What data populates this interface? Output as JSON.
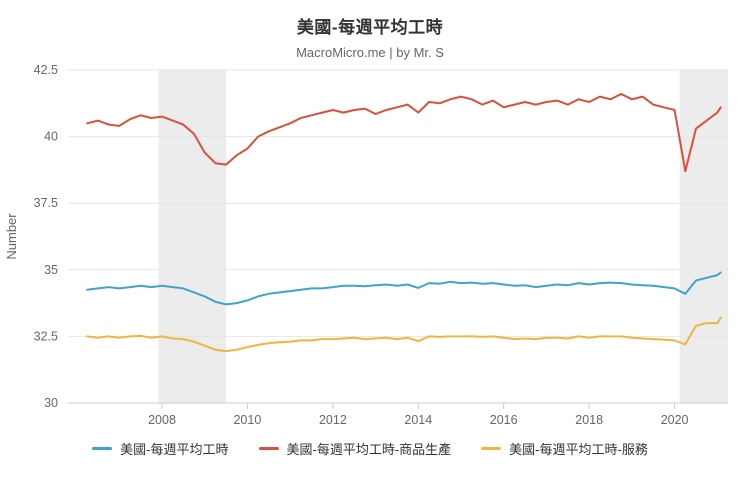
{
  "chart_data": {
    "type": "line",
    "title": "美國-每週平均工時",
    "subtitle": "MacroMicro.me | by Mr. S",
    "xlabel": "",
    "ylabel": "Number",
    "ylim": [
      30,
      42.5
    ],
    "yticks": [
      30,
      32.5,
      35,
      37.5,
      40,
      42.5
    ],
    "xlim": [
      2005.8,
      2021.25
    ],
    "xticks": [
      2008,
      2010,
      2012,
      2014,
      2016,
      2018,
      2020
    ],
    "grid": "horizontal",
    "legend_position": "bottom",
    "band_color": "#ececec",
    "grid_color": "#e6e6e6",
    "axis_color": "#cccccc",
    "tick_label_color": "#666666",
    "recession_bands": [
      {
        "from": 2007.92,
        "to": 2009.5
      },
      {
        "from": 2020.12,
        "to": 2021.25
      }
    ],
    "x": [
      2006.25,
      2006.5,
      2006.75,
      2007,
      2007.25,
      2007.5,
      2007.75,
      2008,
      2008.25,
      2008.5,
      2008.75,
      2009,
      2009.25,
      2009.5,
      2009.75,
      2010,
      2010.25,
      2010.5,
      2010.75,
      2011,
      2011.25,
      2011.5,
      2011.75,
      2012,
      2012.25,
      2012.5,
      2012.75,
      2013,
      2013.25,
      2013.5,
      2013.75,
      2014,
      2014.25,
      2014.5,
      2014.75,
      2015,
      2015.25,
      2015.5,
      2015.75,
      2016,
      2016.25,
      2016.5,
      2016.75,
      2017,
      2017.25,
      2017.5,
      2017.75,
      2018,
      2018.25,
      2018.5,
      2018.75,
      2019,
      2019.25,
      2019.5,
      2019.75,
      2020,
      2020.25,
      2020.5,
      2020.75,
      2021,
      2021.08
    ],
    "series": [
      {
        "name": "美國-每週平均工時",
        "color": "#41a3c9",
        "values": [
          34.25,
          34.3,
          34.35,
          34.3,
          34.35,
          34.4,
          34.35,
          34.4,
          34.35,
          34.3,
          34.15,
          34.0,
          33.8,
          33.7,
          33.75,
          33.85,
          34.0,
          34.1,
          34.15,
          34.2,
          34.25,
          34.3,
          34.3,
          34.35,
          34.4,
          34.4,
          34.38,
          34.42,
          34.45,
          34.4,
          34.45,
          34.32,
          34.5,
          34.48,
          34.55,
          34.5,
          34.52,
          34.48,
          34.5,
          34.45,
          34.4,
          34.42,
          34.35,
          34.4,
          34.45,
          34.42,
          34.5,
          34.45,
          34.5,
          34.52,
          34.5,
          34.45,
          34.42,
          34.4,
          34.35,
          34.3,
          34.1,
          34.6,
          34.7,
          34.8,
          34.9
        ]
      },
      {
        "name": "美國-每週平均工時-商品生產",
        "color": "#d9503c",
        "values": [
          40.5,
          40.6,
          40.45,
          40.4,
          40.65,
          40.8,
          40.7,
          40.75,
          40.6,
          40.45,
          40.1,
          39.4,
          39.0,
          38.95,
          39.3,
          39.55,
          40.0,
          40.2,
          40.35,
          40.5,
          40.7,
          40.8,
          40.9,
          41.0,
          40.9,
          41.0,
          41.05,
          40.85,
          41.0,
          41.1,
          41.2,
          40.9,
          41.3,
          41.25,
          41.4,
          41.5,
          41.4,
          41.2,
          41.35,
          41.1,
          41.2,
          41.3,
          41.2,
          41.3,
          41.35,
          41.2,
          41.4,
          41.3,
          41.5,
          41.4,
          41.6,
          41.4,
          41.5,
          41.2,
          41.1,
          41.0,
          38.7,
          40.3,
          40.6,
          40.9,
          41.1
        ]
      },
      {
        "name": "美國-每週平均工時-服務",
        "color": "#eeb63e",
        "values": [
          32.5,
          32.45,
          32.5,
          32.45,
          32.5,
          32.52,
          32.45,
          32.5,
          32.42,
          32.4,
          32.3,
          32.15,
          32.0,
          31.95,
          32.0,
          32.1,
          32.18,
          32.25,
          32.28,
          32.3,
          32.35,
          32.35,
          32.4,
          32.4,
          32.42,
          32.45,
          32.4,
          32.42,
          32.45,
          32.4,
          32.45,
          32.32,
          32.5,
          32.48,
          32.5,
          32.5,
          32.5,
          32.48,
          32.5,
          32.45,
          32.4,
          32.42,
          32.4,
          32.45,
          32.45,
          32.42,
          32.5,
          32.45,
          32.5,
          32.5,
          32.5,
          32.45,
          32.42,
          32.4,
          32.38,
          32.35,
          32.2,
          32.9,
          33.0,
          33.0,
          33.2
        ]
      }
    ]
  }
}
